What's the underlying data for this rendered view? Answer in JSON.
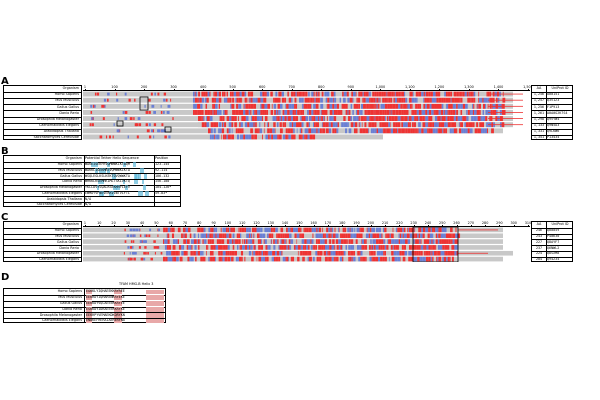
{
  "colors": {
    "red": "#ee3333",
    "blue": "#6a7fd4",
    "gray": "#c8c8c8",
    "cyan": "#60b8d8",
    "pink": "#e8a8a8"
  },
  "panelA": {
    "letter": "A",
    "header_organism": "Organism",
    "header_aa": "AA",
    "header_uniprot": "UniProt ID",
    "ticks": [
      "1",
      "100",
      "200",
      "300",
      "400",
      "500",
      "600",
      "700",
      "800",
      "900",
      "1,000",
      "1,100",
      "1,200",
      "1,300",
      "1,400",
      "1,500"
    ],
    "rows": [
      {
        "organism": "Homo Sapiens",
        "aa": "1,256",
        "uniprot": "O00151"
      },
      {
        "organism": "Mus Musculus",
        "aa": "1,257",
        "uniprot": "Q3V1Z3"
      },
      {
        "organism": "Gallus Gallus",
        "aa": "1,256",
        "uniprot": "F1P913"
      },
      {
        "organism": "Danio Rerio",
        "aa": "1,261",
        "uniprot": "A0A0G2K7S4"
      },
      {
        "organism": "Drosophila Melanogaster",
        "aa": "1,298",
        "uniprot": "Q9VYW4"
      },
      {
        "organism": "Caenorhabditis Elegans",
        "aa": "1,133",
        "uniprot": "Q9N5A3"
      },
      {
        "organism": "Arabidopsis Thaliana",
        "aa": "1,331",
        "uniprot": "Q9LKW6"
      },
      {
        "organism": "Saccharomyces Cerevisiae",
        "aa": "1,351",
        "uniprot": "P13434"
      }
    ]
  },
  "panelB": {
    "letter": "B",
    "header_organism": "Organism",
    "header_seq": "Potential Tether Helix Sequence",
    "header_pos": "Position",
    "rows": [
      {
        "organism": "Homo Sapiens",
        "seq": "WAKEISEKFKVQMWWKLKTAQM",
        "pos": "123-145"
      },
      {
        "organism": "Mus Musculus",
        "seq": "WAKKLIGEKMKEVQMWWKLKTA",
        "pos": "92-114"
      },
      {
        "organism": "Gallus Gallus",
        "seq": "WSQLEGLKSLKEKTQVQWWKTA",
        "pos": "106-132"
      },
      {
        "organism": "Danio Rerio",
        "seq": "WHKKLKSEMHKIMLTSKLVKTQ",
        "pos": "156-180"
      },
      {
        "organism": "Drosophila Melanogaster",
        "seq": "YKLLDVYSQALKSEKMHYLEFV",
        "pos": "104-126*"
      },
      {
        "organism": "Caenorhabditis Elegans",
        "seq": "EWMAYVFNEVEKKVLWTVLFTL",
        "pos": "59-83*"
      },
      {
        "organism": "Arabidopsis Thaliana",
        "seq": "N/A",
        "pos": ""
      },
      {
        "organism": "Saccharomyces Cerevisiae",
        "seq": "N/A",
        "pos": ""
      }
    ]
  },
  "panelC": {
    "letter": "C",
    "header_organism": "Organism",
    "header_aa": "AA",
    "header_uniprot": "UniProt ID",
    "ticks": [
      "1",
      "10",
      "20",
      "30",
      "40",
      "50",
      "60",
      "70",
      "80",
      "90",
      "100",
      "110",
      "120",
      "130",
      "140",
      "150",
      "160",
      "170",
      "180",
      "190",
      "200",
      "210",
      "220",
      "230",
      "240",
      "250",
      "260",
      "270",
      "280",
      "290",
      "300",
      "310"
    ],
    "rows": [
      {
        "organism": "Homo Sapiens",
        "aa": "246",
        "uniprot": "Q00059"
      },
      {
        "organism": "Mus Musculus",
        "aa": "243",
        "uniprot": "P40630"
      },
      {
        "organism": "Gallus Gallus",
        "aa": "227",
        "uniprot": "Q8AYF7"
      },
      {
        "organism": "Danio Rerio",
        "aa": "237",
        "uniprot": "Q6NWL2"
      },
      {
        "organism": "Drosophila Melanogaster",
        "aa": "224",
        "uniprot": "Q8SXM8"
      },
      {
        "organism": "Caenorhabditis Elegans",
        "aa": "204",
        "uniprot": "Q94Z34"
      }
    ]
  },
  "panelD": {
    "letter": "D",
    "header_title": "TFAM HMG-B Helix 3",
    "rows": [
      {
        "organism": "Homo Sapiens",
        "seq": "EGKKLYIQHAEEKKRYREE"
      },
      {
        "organism": "Mus Musculus",
        "seq": "EEKRAYIQHARENKRYEKE"
      },
      {
        "organism": "Gallus Gallus",
        "seq": "EEKKAYVQLAEEEKKRYEE"
      },
      {
        "organism": "Danio Rerio",
        "seq": "ESKKAYIDKAEEEKKRYKE"
      },
      {
        "organism": "Drosophila Melanogaster",
        "seq": "EEKRPYVEMAEKDKQRYKN"
      },
      {
        "organism": "Caenorhabditis Elegans",
        "seq": "ENAKEFHERAIAERERYNA"
      }
    ]
  }
}
